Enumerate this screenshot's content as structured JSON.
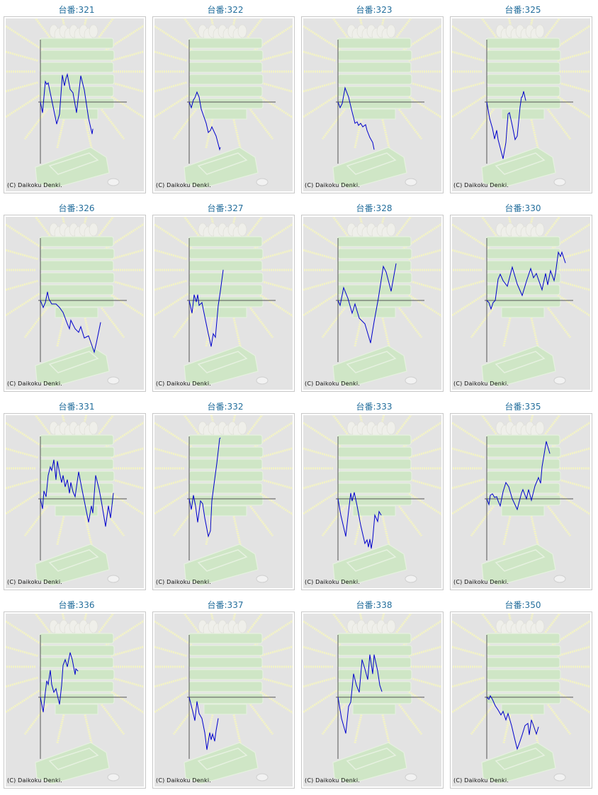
{
  "copyright": "(C) Daikoku Denki.",
  "colors": {
    "title": "#236e9c",
    "series": "#0000cc",
    "axis": "#555555",
    "background": "#e3e3e3"
  },
  "chart_data": [
    {
      "type": "line",
      "title": "台番:321",
      "points": [
        [
          0,
          0
        ],
        [
          3,
          -15
        ],
        [
          7,
          29
        ],
        [
          9,
          25
        ],
        [
          11,
          27
        ],
        [
          16,
          3
        ],
        [
          23,
          -31
        ],
        [
          27,
          -17
        ],
        [
          31,
          38
        ],
        [
          34,
          23
        ],
        [
          36,
          33
        ],
        [
          38,
          39
        ],
        [
          42,
          18
        ],
        [
          46,
          13
        ],
        [
          51,
          -15
        ],
        [
          57,
          37
        ],
        [
          62,
          17
        ],
        [
          68,
          -23
        ],
        [
          73,
          -45
        ],
        [
          74,
          -38
        ]
      ]
    },
    {
      "type": "line",
      "title": "台番:322",
      "points": [
        [
          0,
          0
        ],
        [
          3,
          -8
        ],
        [
          6,
          3
        ],
        [
          8,
          6
        ],
        [
          11,
          14
        ],
        [
          14,
          7
        ],
        [
          17,
          -10
        ],
        [
          24,
          -30
        ],
        [
          27,
          -43
        ],
        [
          30,
          -40
        ],
        [
          32,
          -35
        ],
        [
          38,
          -48
        ],
        [
          43,
          -67
        ],
        [
          44,
          -64
        ]
      ]
    },
    {
      "type": "line",
      "title": "台番:323",
      "points": [
        [
          0,
          0
        ],
        [
          3,
          -8
        ],
        [
          6,
          -2
        ],
        [
          10,
          20
        ],
        [
          15,
          7
        ],
        [
          19,
          -10
        ],
        [
          24,
          -30
        ],
        [
          27,
          -28
        ],
        [
          29,
          -33
        ],
        [
          32,
          -30
        ],
        [
          35,
          -35
        ],
        [
          39,
          -32
        ],
        [
          41,
          -40
        ],
        [
          45,
          -50
        ],
        [
          49,
          -57
        ],
        [
          51,
          -67
        ]
      ]
    },
    {
      "type": "line",
      "title": "台番:325",
      "points": [
        [
          0,
          0
        ],
        [
          4,
          -23
        ],
        [
          8,
          -37
        ],
        [
          11,
          -52
        ],
        [
          14,
          -40
        ],
        [
          16,
          -53
        ],
        [
          23,
          -80
        ],
        [
          27,
          -57
        ],
        [
          30,
          -17
        ],
        [
          32,
          -15
        ],
        [
          36,
          -33
        ],
        [
          40,
          -53
        ],
        [
          43,
          -48
        ],
        [
          47,
          -7
        ],
        [
          49,
          7
        ],
        [
          50,
          7
        ],
        [
          52,
          15
        ],
        [
          55,
          2
        ]
      ]
    },
    {
      "type": "line",
      "title": "台番:326",
      "points": [
        [
          0,
          0
        ],
        [
          4,
          -10
        ],
        [
          7,
          -3
        ],
        [
          10,
          12
        ],
        [
          12,
          2
        ],
        [
          16,
          -5
        ],
        [
          22,
          -5
        ],
        [
          27,
          -10
        ],
        [
          32,
          -17
        ],
        [
          38,
          -33
        ],
        [
          41,
          -40
        ],
        [
          43,
          -28
        ],
        [
          49,
          -40
        ],
        [
          54,
          -45
        ],
        [
          57,
          -37
        ],
        [
          62,
          -53
        ],
        [
          68,
          -50
        ],
        [
          76,
          -73
        ],
        [
          79,
          -60
        ],
        [
          85,
          -31
        ]
      ]
    },
    {
      "type": "line",
      "title": "台番:327",
      "points": [
        [
          0,
          0
        ],
        [
          4,
          -18
        ],
        [
          7,
          8
        ],
        [
          10,
          -2
        ],
        [
          12,
          8
        ],
        [
          14,
          -7
        ],
        [
          18,
          -3
        ],
        [
          22,
          -23
        ],
        [
          27,
          -47
        ],
        [
          31,
          -65
        ],
        [
          34,
          -47
        ],
        [
          37,
          -52
        ],
        [
          41,
          -7
        ],
        [
          44,
          13
        ],
        [
          48,
          43
        ]
      ]
    },
    {
      "type": "line",
      "title": "台番:328",
      "points": [
        [
          0,
          0
        ],
        [
          3,
          -7
        ],
        [
          8,
          18
        ],
        [
          14,
          3
        ],
        [
          20,
          -18
        ],
        [
          24,
          -5
        ],
        [
          30,
          -25
        ],
        [
          38,
          -33
        ],
        [
          46,
          -60
        ],
        [
          51,
          -30
        ],
        [
          57,
          3
        ],
        [
          64,
          48
        ],
        [
          68,
          40
        ],
        [
          75,
          13
        ],
        [
          82,
          52
        ]
      ]
    },
    {
      "type": "line",
      "title": "台番:330",
      "points": [
        [
          0,
          0
        ],
        [
          3,
          -3
        ],
        [
          6,
          -12
        ],
        [
          9,
          -3
        ],
        [
          12,
          0
        ],
        [
          16,
          30
        ],
        [
          19,
          37
        ],
        [
          23,
          28
        ],
        [
          29,
          20
        ],
        [
          36,
          47
        ],
        [
          43,
          23
        ],
        [
          50,
          7
        ],
        [
          56,
          27
        ],
        [
          62,
          45
        ],
        [
          66,
          32
        ],
        [
          70,
          38
        ],
        [
          78,
          15
        ],
        [
          83,
          38
        ],
        [
          86,
          22
        ],
        [
          90,
          42
        ],
        [
          95,
          28
        ],
        [
          97,
          38
        ],
        [
          101,
          68
        ],
        [
          104,
          62
        ],
        [
          106,
          68
        ],
        [
          111,
          53
        ]
      ]
    },
    {
      "type": "line",
      "title": "台番:331",
      "points": [
        [
          0,
          0
        ],
        [
          3,
          -14
        ],
        [
          5,
          11
        ],
        [
          8,
          3
        ],
        [
          11,
          33
        ],
        [
          14,
          45
        ],
        [
          16,
          40
        ],
        [
          19,
          55
        ],
        [
          22,
          27
        ],
        [
          24,
          53
        ],
        [
          27,
          37
        ],
        [
          30,
          23
        ],
        [
          32,
          33
        ],
        [
          35,
          17
        ],
        [
          38,
          27
        ],
        [
          41,
          8
        ],
        [
          43,
          23
        ],
        [
          46,
          10
        ],
        [
          49,
          3
        ],
        [
          54,
          38
        ],
        [
          58,
          17
        ],
        [
          62,
          -3
        ],
        [
          68,
          -33
        ],
        [
          72,
          -10
        ],
        [
          74,
          -20
        ],
        [
          78,
          33
        ],
        [
          83,
          13
        ],
        [
          86,
          -3
        ],
        [
          92,
          -39
        ],
        [
          96,
          -10
        ],
        [
          99,
          -27
        ],
        [
          103,
          8
        ]
      ]
    },
    {
      "type": "line",
      "title": "台番:332",
      "points": [
        [
          0,
          0
        ],
        [
          3,
          -15
        ],
        [
          6,
          5
        ],
        [
          9,
          -10
        ],
        [
          12,
          -33
        ],
        [
          16,
          -3
        ],
        [
          19,
          -7
        ],
        [
          22,
          -27
        ],
        [
          27,
          -53
        ],
        [
          30,
          -45
        ],
        [
          32,
          -3
        ],
        [
          35,
          20
        ],
        [
          39,
          50
        ],
        [
          43,
          85
        ],
        [
          44,
          86
        ]
      ]
    },
    {
      "type": "line",
      "title": "台番:333",
      "points": [
        [
          0,
          0
        ],
        [
          4,
          -23
        ],
        [
          11,
          -53
        ],
        [
          15,
          -17
        ],
        [
          18,
          8
        ],
        [
          20,
          -3
        ],
        [
          23,
          9
        ],
        [
          27,
          -10
        ],
        [
          32,
          -37
        ],
        [
          38,
          -63
        ],
        [
          41,
          -58
        ],
        [
          43,
          -68
        ],
        [
          45,
          -57
        ],
        [
          47,
          -70
        ],
        [
          49,
          -57
        ],
        [
          52,
          -23
        ],
        [
          56,
          -32
        ],
        [
          58,
          -18
        ],
        [
          61,
          -23
        ]
      ]
    },
    {
      "type": "line",
      "title": "台番:335",
      "points": [
        [
          0,
          0
        ],
        [
          3,
          -8
        ],
        [
          5,
          5
        ],
        [
          8,
          7
        ],
        [
          11,
          2
        ],
        [
          14,
          3
        ],
        [
          16,
          -3
        ],
        [
          19,
          -10
        ],
        [
          23,
          10
        ],
        [
          27,
          23
        ],
        [
          31,
          17
        ],
        [
          36,
          0
        ],
        [
          43,
          -15
        ],
        [
          49,
          8
        ],
        [
          51,
          13
        ],
        [
          56,
          0
        ],
        [
          59,
          13
        ],
        [
          63,
          -2
        ],
        [
          68,
          18
        ],
        [
          73,
          30
        ],
        [
          76,
          22
        ],
        [
          78,
          45
        ],
        [
          84,
          81
        ],
        [
          89,
          64
        ]
      ]
    },
    {
      "type": "line",
      "title": "台番:336",
      "points": [
        [
          0,
          0
        ],
        [
          4,
          -21
        ],
        [
          7,
          7
        ],
        [
          9,
          23
        ],
        [
          11,
          18
        ],
        [
          14,
          38
        ],
        [
          16,
          18
        ],
        [
          19,
          7
        ],
        [
          22,
          12
        ],
        [
          24,
          3
        ],
        [
          27,
          -10
        ],
        [
          30,
          17
        ],
        [
          32,
          45
        ],
        [
          35,
          53
        ],
        [
          38,
          43
        ],
        [
          42,
          63
        ],
        [
          45,
          53
        ],
        [
          49,
          32
        ],
        [
          50,
          40
        ],
        [
          53,
          37
        ]
      ]
    },
    {
      "type": "line",
      "title": "台番:337",
      "points": [
        [
          0,
          0
        ],
        [
          3,
          -12
        ],
        [
          5,
          -20
        ],
        [
          8,
          -33
        ],
        [
          11,
          -6
        ],
        [
          14,
          -23
        ],
        [
          18,
          -30
        ],
        [
          22,
          -50
        ],
        [
          25,
          -74
        ],
        [
          29,
          -50
        ],
        [
          31,
          -60
        ],
        [
          33,
          -52
        ],
        [
          36,
          -62
        ],
        [
          38,
          -47
        ],
        [
          41,
          -30
        ]
      ]
    },
    {
      "type": "line",
      "title": "台番:338",
      "points": [
        [
          0,
          0
        ],
        [
          5,
          -30
        ],
        [
          11,
          -51
        ],
        [
          15,
          -13
        ],
        [
          18,
          -7
        ],
        [
          22,
          33
        ],
        [
          26,
          17
        ],
        [
          30,
          7
        ],
        [
          34,
          53
        ],
        [
          38,
          40
        ],
        [
          42,
          25
        ],
        [
          45,
          60
        ],
        [
          49,
          33
        ],
        [
          51,
          60
        ],
        [
          56,
          37
        ],
        [
          59,
          17
        ],
        [
          62,
          8
        ]
      ]
    },
    {
      "type": "line",
      "title": "台番:350",
      "points": [
        [
          0,
          0
        ],
        [
          3,
          -3
        ],
        [
          5,
          2
        ],
        [
          8,
          -3
        ],
        [
          12,
          -12
        ],
        [
          16,
          -18
        ],
        [
          20,
          -25
        ],
        [
          23,
          -20
        ],
        [
          27,
          -32
        ],
        [
          30,
          -23
        ],
        [
          35,
          -40
        ],
        [
          39,
          -57
        ],
        [
          43,
          -73
        ],
        [
          47,
          -62
        ],
        [
          50,
          -53
        ],
        [
          54,
          -40
        ],
        [
          58,
          -37
        ],
        [
          60,
          -53
        ],
        [
          63,
          -32
        ],
        [
          66,
          -40
        ],
        [
          70,
          -52
        ],
        [
          73,
          -42
        ]
      ]
    }
  ]
}
